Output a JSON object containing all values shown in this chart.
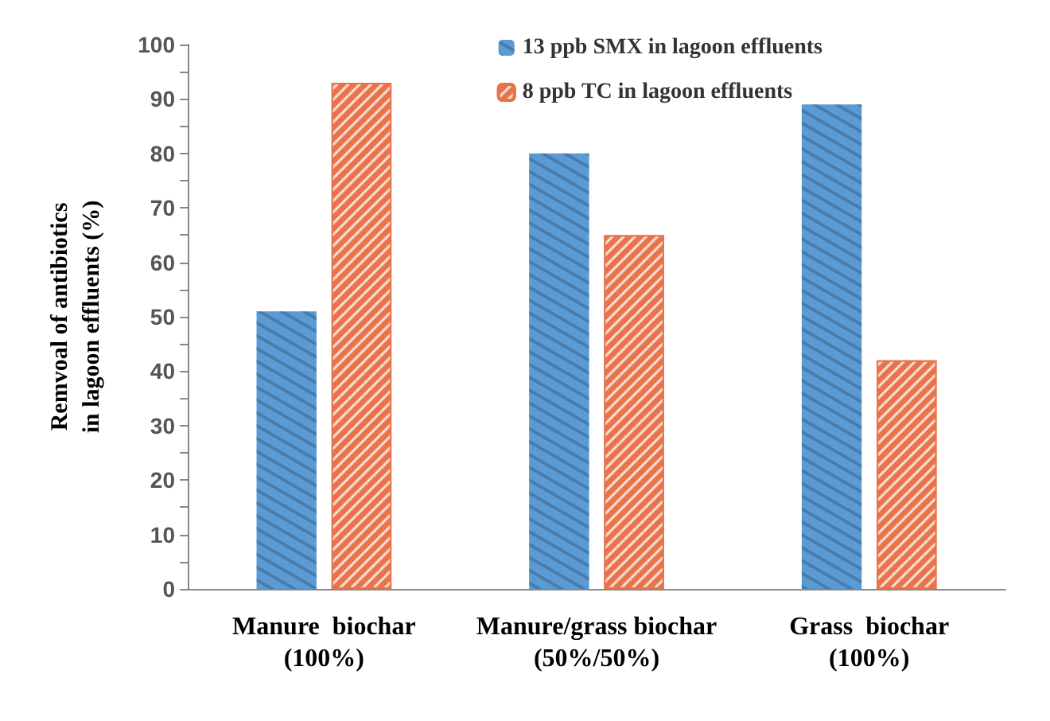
{
  "chart_data": {
    "type": "bar",
    "ylabel": "Remvoal of antibiotics\nin lagoon effluents (%)",
    "categories": [
      "Manure  biochar\n(100%)",
      "Manure/grass biochar\n(50%/50%)",
      "Grass  biochar\n(100%)"
    ],
    "series": [
      {
        "name": "13 ppb SMX in lagoon effluents",
        "color": "#5b9bd5",
        "values": [
          51,
          80,
          89
        ]
      },
      {
        "name": "8 ppb TC in lagoon effluents",
        "color": "#e8734a",
        "values": [
          93,
          65,
          42
        ]
      }
    ],
    "ylim": [
      0,
      100
    ],
    "yticks": [
      0,
      {
        "value": 5,
        "label": null
      },
      10,
      {
        "value": 15,
        "label": null
      },
      20,
      {
        "value": 25,
        "label": null
      },
      30,
      {
        "value": 35,
        "label": null
      },
      40,
      {
        "value": 45,
        "label": null
      },
      50,
      {
        "value": 55,
        "label": null
      },
      60,
      {
        "value": 65,
        "label": null
      },
      70,
      {
        "value": 75,
        "label": null
      },
      80,
      {
        "value": 85,
        "label": null
      },
      90,
      {
        "value": 95,
        "label": null
      },
      100
    ],
    "grid": false,
    "legend": "top right"
  }
}
